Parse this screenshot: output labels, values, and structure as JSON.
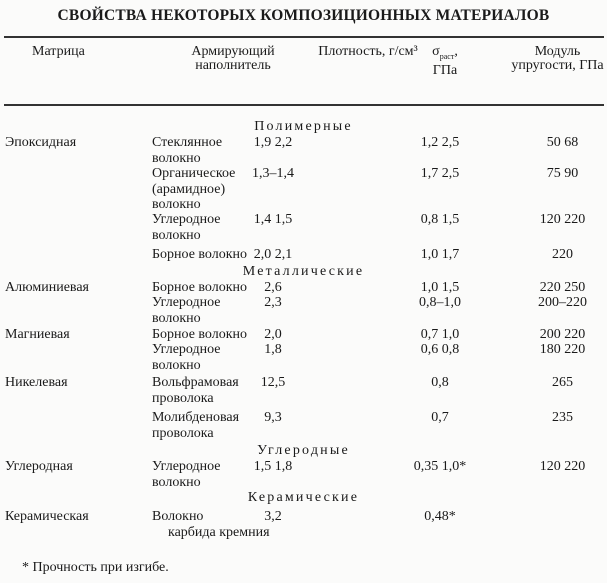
{
  "title": "СВОЙСТВА НЕКОТОРЫХ КОМПОЗИЦИОННЫХ МАТЕРИАЛОВ",
  "headers": {
    "matrix": "Матрица",
    "filler": "Армирующий наполнитель",
    "density": "Плотность, г/см³",
    "strength_symbol": "σ",
    "strength_sub": "раст",
    "strength_unit": "ГПа",
    "modulus": "Модуль упругости, ГПа"
  },
  "groups": {
    "polymer": "Полимерные",
    "metal": "Металлические",
    "carbon": "Углеродные",
    "ceramic": "Керамические"
  },
  "rows": [
    {
      "matrix": "Эпоксидная",
      "filler": [
        "Стеклянное",
        "волокно"
      ],
      "density": "1,9  2,2",
      "strength": "1,2  2,5",
      "modulus": "50  68"
    },
    {
      "matrix": "",
      "filler": [
        "Органическое",
        "(арамидное)",
        "волокно"
      ],
      "density": "1,3–1,4",
      "strength": "1,7  2,5",
      "modulus": "75  90"
    },
    {
      "matrix": "",
      "filler": [
        "Углеродное",
        "волокно"
      ],
      "density": "1,4  1,5",
      "strength": "0,8  1,5",
      "modulus": "120  220"
    },
    {
      "matrix": "",
      "filler": [
        "Борное волокно"
      ],
      "density": "2,0  2,1",
      "strength": "1,0  1,7",
      "modulus": "220"
    },
    {
      "matrix": "Алюминиевая",
      "filler": [
        "Борное волокно"
      ],
      "density": "2,6",
      "strength": "1,0  1,5",
      "modulus": "220  250"
    },
    {
      "matrix": "",
      "filler": [
        "Углеродное",
        "волокно"
      ],
      "density": "2,3",
      "strength": "0,8–1,0",
      "modulus": "200–220"
    },
    {
      "matrix": "Магниевая",
      "filler": [
        "Борное волокно"
      ],
      "density": "2,0",
      "strength": "0,7  1,0",
      "modulus": "200  220"
    },
    {
      "matrix": "",
      "filler": [
        "Углеродное",
        "волокно"
      ],
      "density": "1,8",
      "strength": "0,6  0,8",
      "modulus": "180  220"
    },
    {
      "matrix": "Никелевая",
      "filler": [
        "Вольфрамовая",
        "проволока"
      ],
      "density": "12,5",
      "strength": "0,8",
      "modulus": "265"
    },
    {
      "matrix": "",
      "filler": [
        "Молибденовая",
        "проволока"
      ],
      "density": "9,3",
      "strength": "0,7",
      "modulus": "235"
    },
    {
      "matrix": "Углеродная",
      "filler": [
        "Углеродное",
        "волокно"
      ],
      "density": "1,5  1,8",
      "strength": "0,35  1,0*",
      "modulus": "120  220"
    },
    {
      "matrix": "Керамическая",
      "filler": [
        "Волокно",
        "карбида кремния"
      ],
      "density": "3,2",
      "strength": "0,48*",
      "modulus": ""
    }
  ],
  "footnote": "* Прочность при изгибе."
}
